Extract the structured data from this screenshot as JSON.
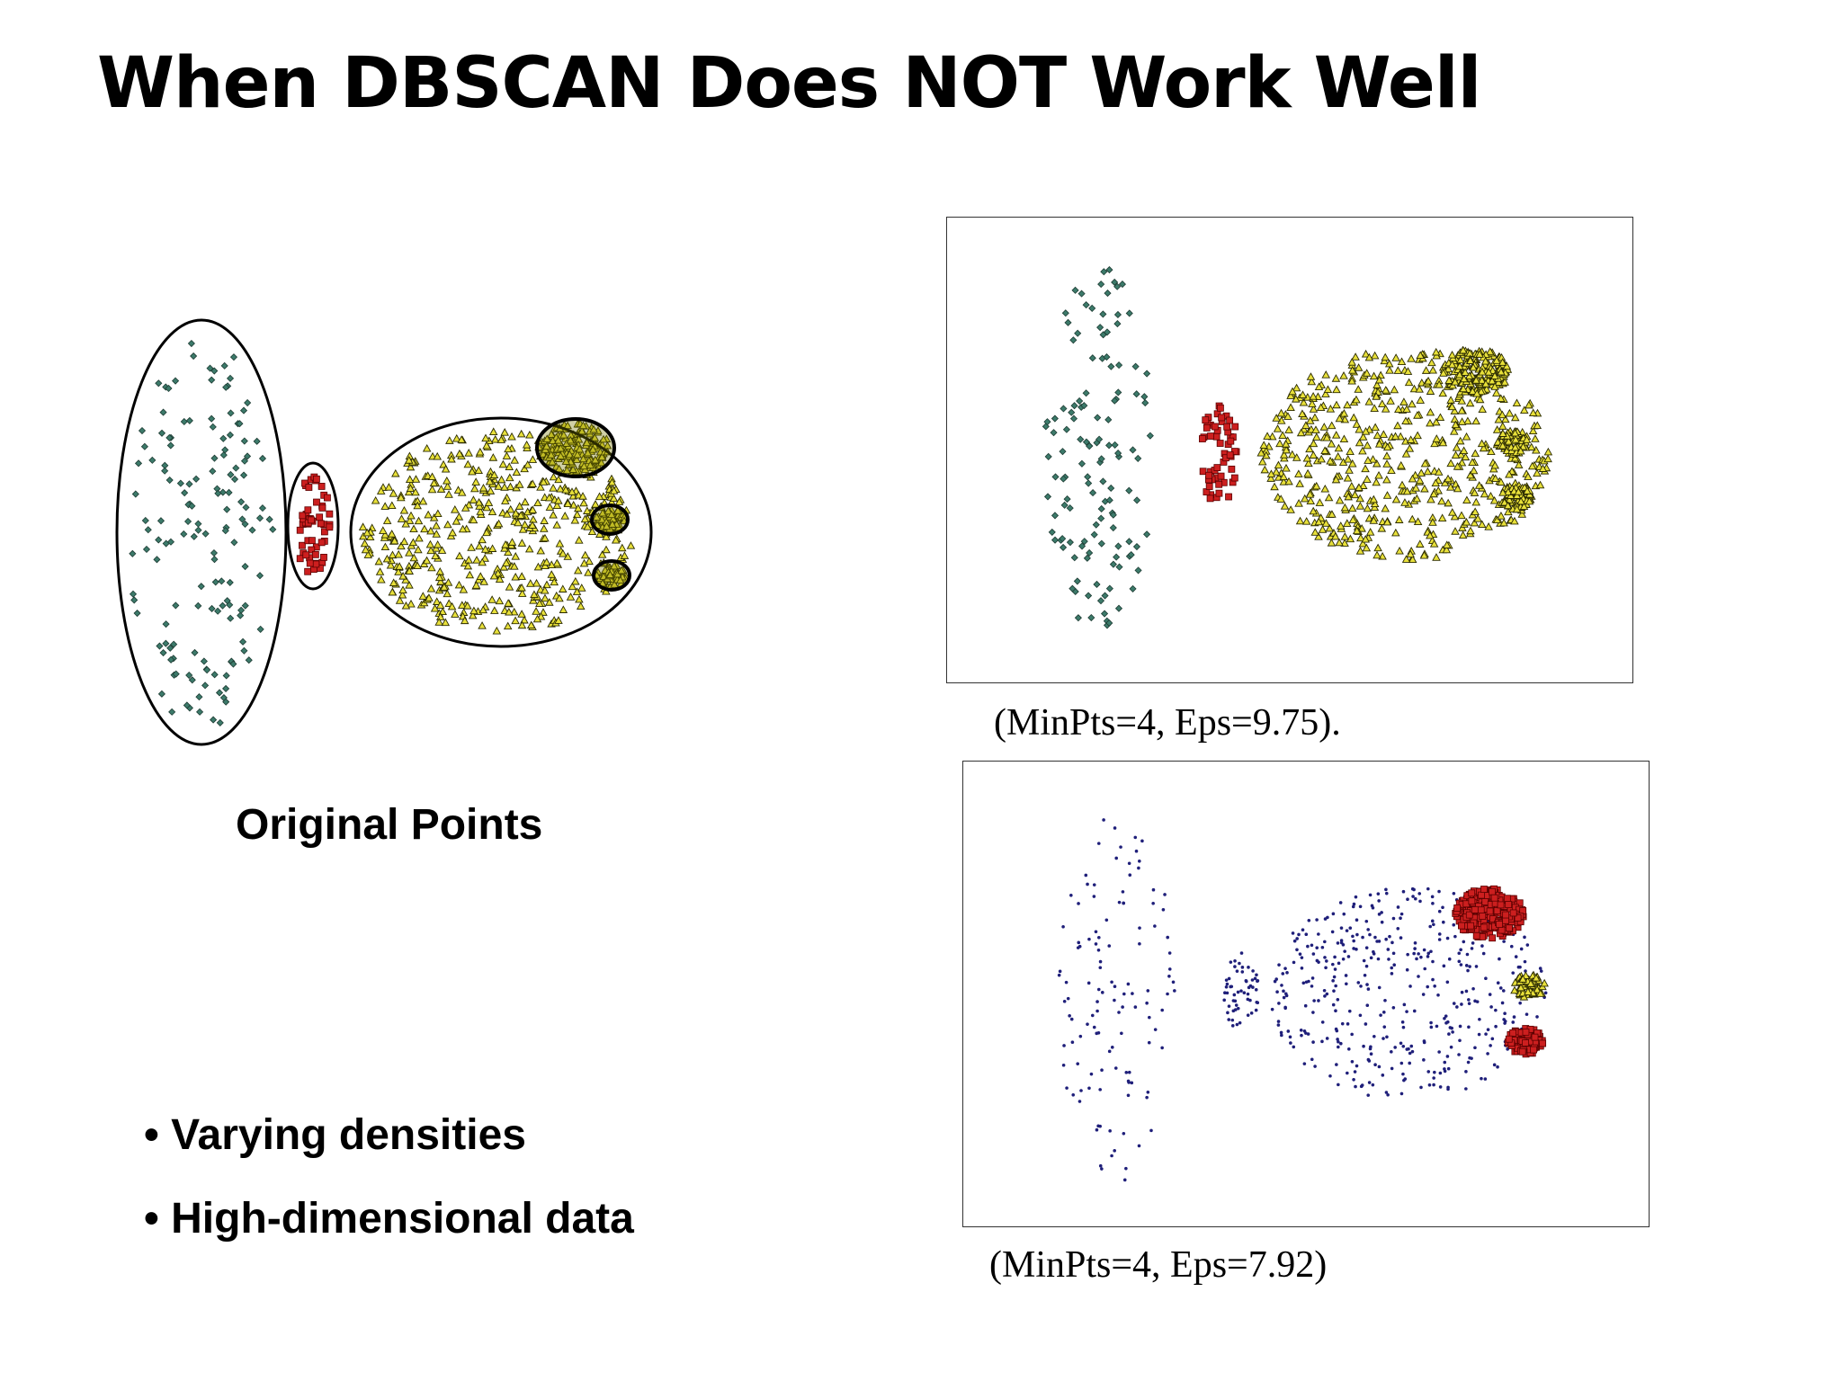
{
  "slide": {
    "title": "When DBSCAN Does NOT Work Well",
    "original_label": "Original Points",
    "bullets": [
      "• Varying densities",
      "• High-dimensional data"
    ],
    "captions": [
      "(MinPts=4, Eps=9.75).",
      "(MinPts=4, Eps=7.92)"
    ]
  },
  "colors": {
    "teal_point": "#3c7a6a",
    "red_point": "#cc1f1f",
    "yellow_point": "#e8e03a",
    "noise_point": "#1f1f7a",
    "outline": "#000000"
  },
  "figures": [
    {
      "name": "original-points",
      "clusters": [
        "tall sparse cluster",
        "small red cluster",
        "large yellow cluster",
        "dense sub-clusters"
      ]
    },
    {
      "name": "dbscan-eps-9.75",
      "clusters": [
        "teal",
        "red",
        "yellow"
      ]
    },
    {
      "name": "dbscan-eps-7.92",
      "clusters": [
        "noise",
        "red",
        "yellow",
        "red"
      ]
    }
  ]
}
